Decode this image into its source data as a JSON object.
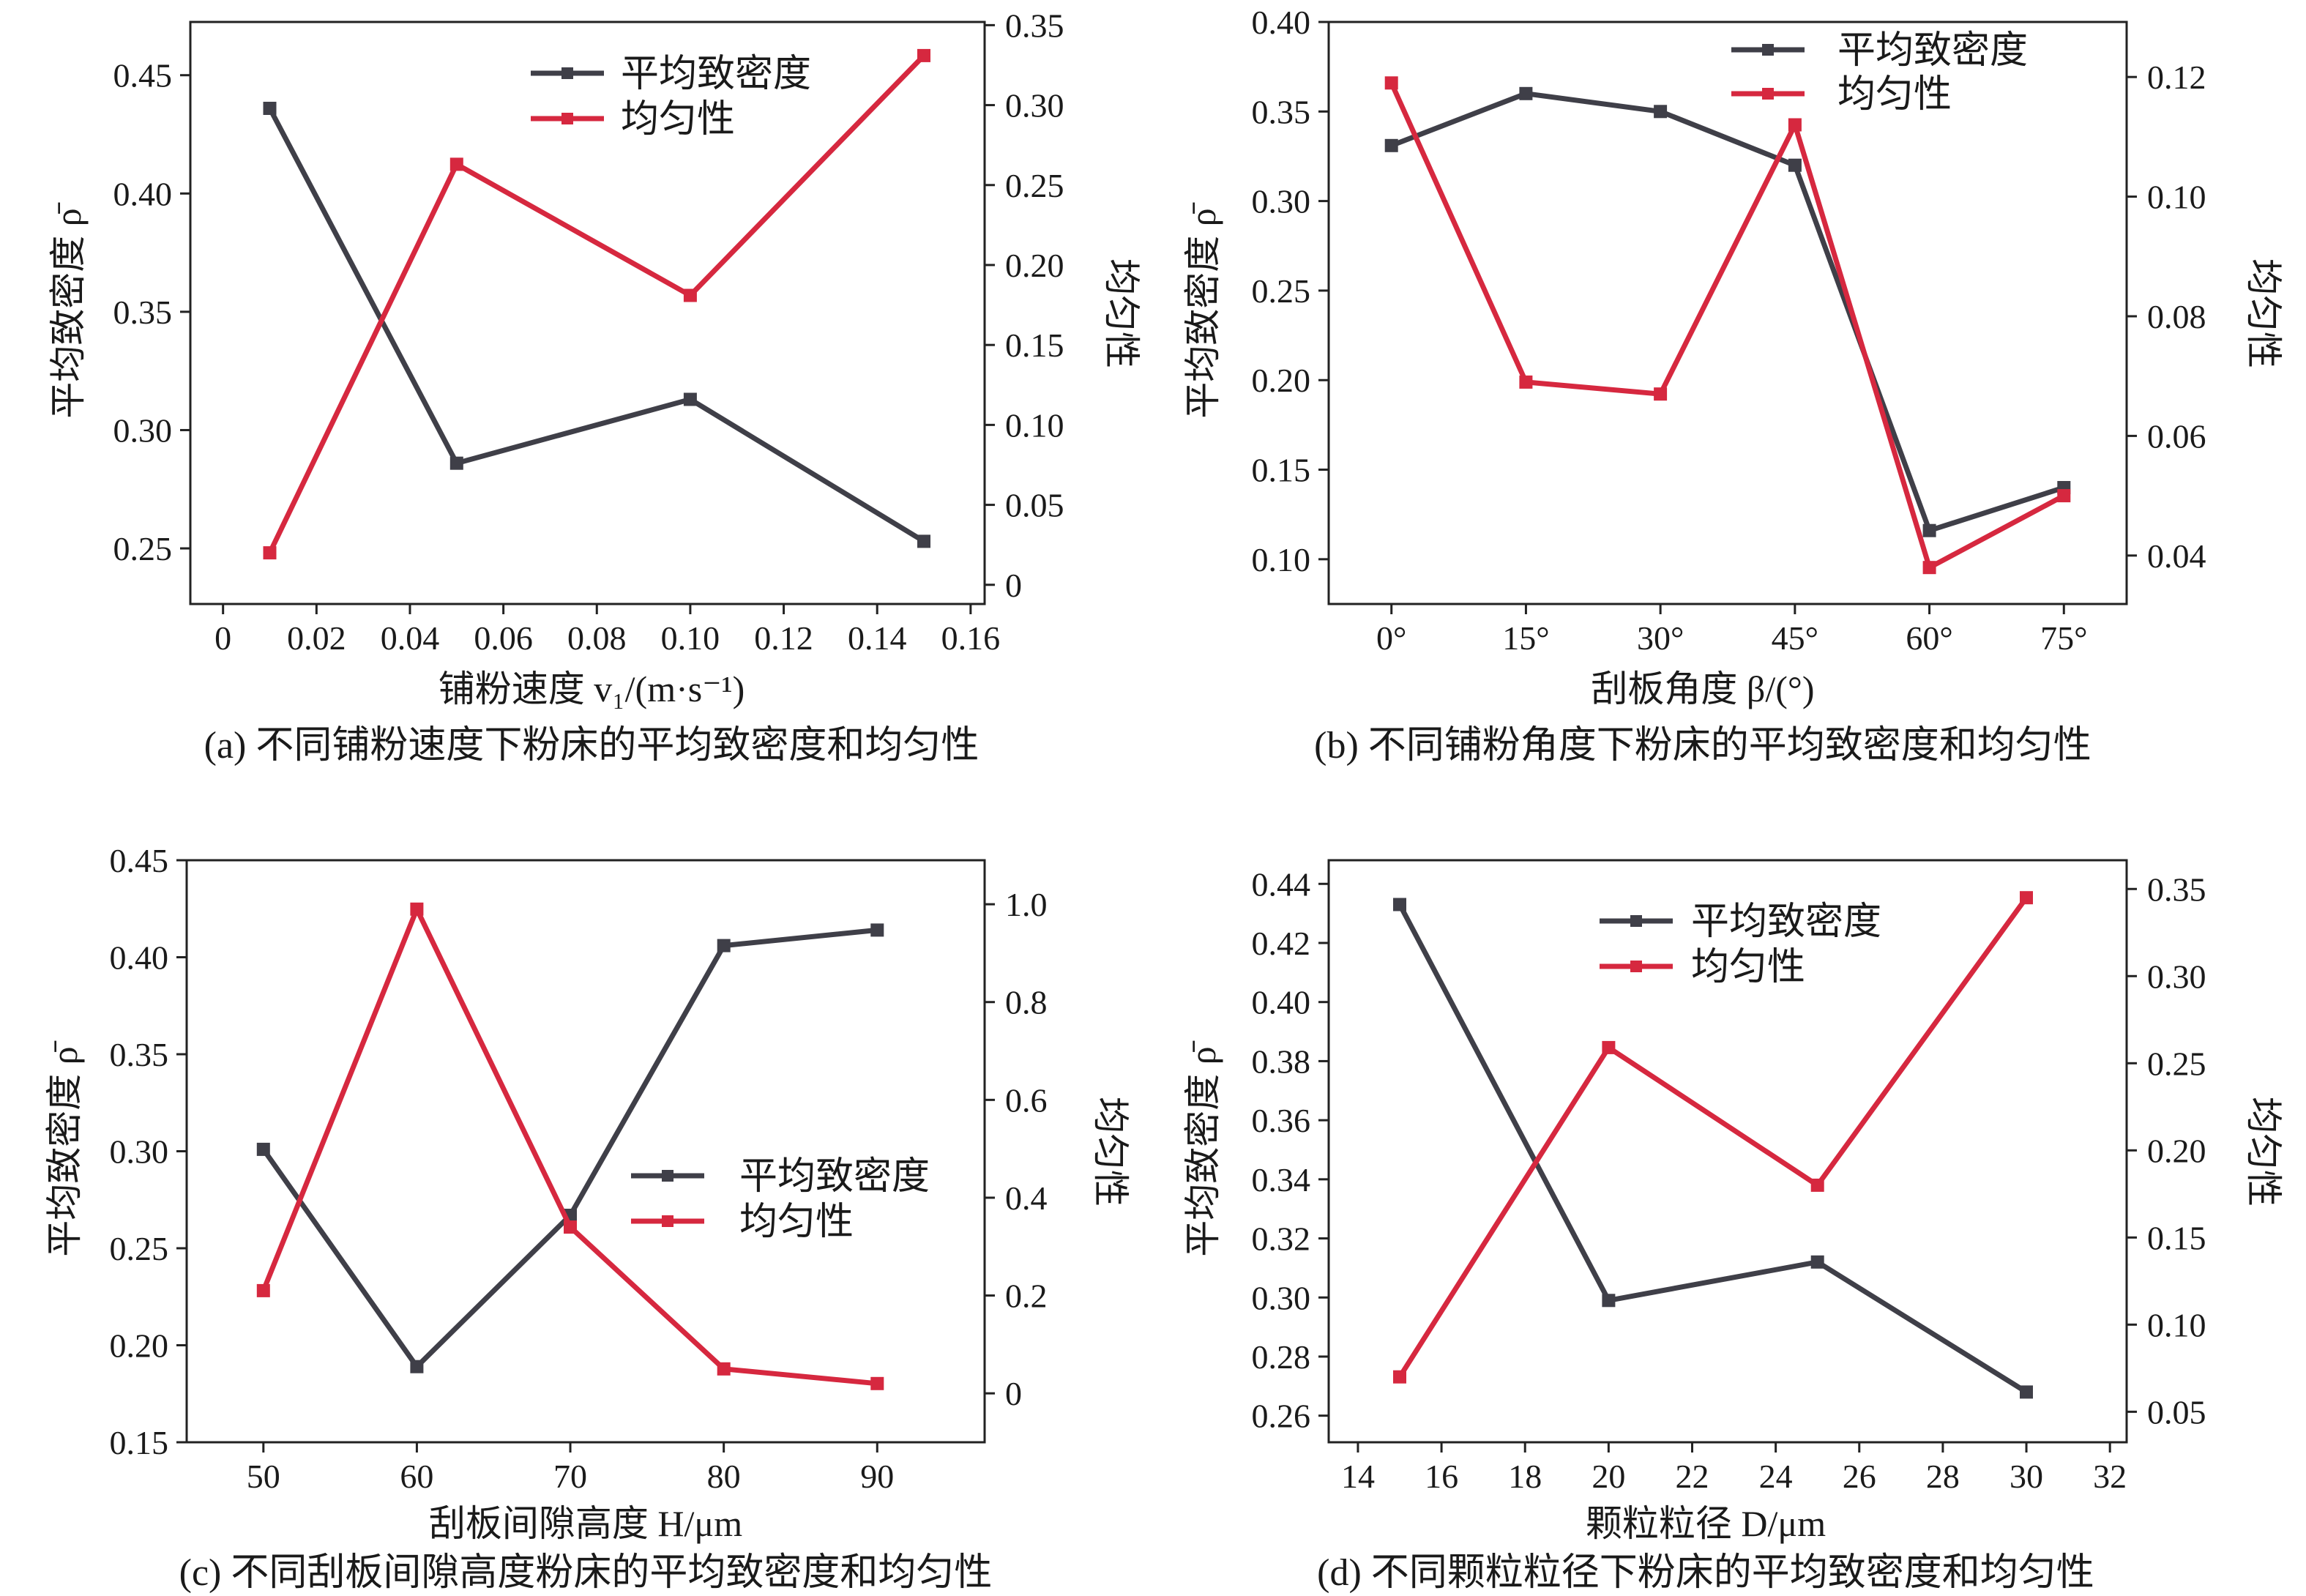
{
  "colors": {
    "density": "#3f3f48",
    "uniformity": "#d6283f",
    "axis": "#222222"
  },
  "chart_data": [
    {
      "type": "line",
      "caption": "(a) 不同铺粉速度下粉床的平均致密度和均匀性",
      "xlabel": "铺粉速度 v₁/(m·s⁻¹)",
      "ylabel": "平均致密度 ρ̄",
      "y2label": "均匀性",
      "legend": [
        "平均致密度",
        "均匀性"
      ],
      "x_kind": "numeric",
      "x_ticks": [
        0,
        0.02,
        0.04,
        0.06,
        0.08,
        0.1,
        0.12,
        0.14,
        0.16
      ],
      "x_tick_labels": [
        "0",
        "0.02",
        "0.04",
        "0.06",
        "0.08",
        "0.10",
        "0.12",
        "0.14",
        "0.16"
      ],
      "xlim": [
        -0.007,
        0.163
      ],
      "y_ticks": [
        0.25,
        0.3,
        0.35,
        0.4,
        0.45
      ],
      "y_tick_labels": [
        "0.25",
        "0.30",
        "0.35",
        "0.40",
        "0.45"
      ],
      "ylim": [
        0.2265,
        0.4725
      ],
      "y2_ticks": [
        0,
        0.05,
        0.1,
        0.15,
        0.2,
        0.25,
        0.3,
        0.35
      ],
      "y2_tick_labels": [
        "0",
        "0.05",
        "0.10",
        "0.15",
        "0.20",
        "0.25",
        "0.30",
        "0.35"
      ],
      "y2lim": [
        -0.012,
        0.352
      ],
      "series": [
        {
          "name": "平均致密度",
          "axis": "left",
          "x": [
            0.01,
            0.05,
            0.1,
            0.15
          ],
          "values": [
            0.436,
            0.286,
            0.313,
            0.253
          ]
        },
        {
          "name": "均匀性",
          "axis": "right",
          "x": [
            0.01,
            0.05,
            0.1,
            0.15
          ],
          "values": [
            0.02,
            0.263,
            0.181,
            0.331
          ]
        }
      ]
    },
    {
      "type": "line",
      "caption": "(b) 不同铺粉角度下粉床的平均致密度和均匀性",
      "xlabel": "刮板角度 β/(°)",
      "ylabel": "平均致密度 ρ̄",
      "y2label": "均匀性",
      "legend": [
        "平均致密度",
        "均匀性"
      ],
      "x_kind": "numeric",
      "x_ticks": [
        0,
        15,
        30,
        45,
        60,
        75
      ],
      "x_tick_labels": [
        "0°",
        "15°",
        "30°",
        "45°",
        "60°",
        "75°"
      ],
      "xlim": [
        -7,
        82
      ],
      "y_ticks": [
        0.1,
        0.15,
        0.2,
        0.25,
        0.3,
        0.35,
        0.4
      ],
      "y_tick_labels": [
        "0.10",
        "0.15",
        "0.20",
        "0.25",
        "0.30",
        "0.35",
        "0.40"
      ],
      "ylim": [
        0.075,
        0.4
      ],
      "y2_ticks": [
        0.04,
        0.06,
        0.08,
        0.1,
        0.12
      ],
      "y2_tick_labels": [
        "0.04",
        "0.06",
        "0.08",
        "0.10",
        "0.12"
      ],
      "y2lim": [
        0.0319,
        0.1292
      ],
      "series": [
        {
          "name": "平均致密度",
          "axis": "left",
          "x": [
            0,
            15,
            30,
            45,
            60,
            75
          ],
          "values": [
            0.331,
            0.36,
            0.35,
            0.32,
            0.116,
            0.14
          ]
        },
        {
          "name": "均匀性",
          "axis": "right",
          "x": [
            0,
            15,
            30,
            45,
            60,
            75
          ],
          "values": [
            0.119,
            0.069,
            0.067,
            0.112,
            0.038,
            0.05
          ]
        }
      ]
    },
    {
      "type": "line",
      "caption": "(c) 不同刮板间隙高度粉床的平均致密度和均匀性",
      "xlabel": "刮板间隙高度 H/μm",
      "ylabel": "平均致密度 ρ̄",
      "y2label": "均匀性",
      "legend": [
        "平均致密度",
        "均匀性"
      ],
      "x_kind": "numeric",
      "x_ticks": [
        50,
        60,
        70,
        80,
        90
      ],
      "x_tick_labels": [
        "50",
        "60",
        "70",
        "80",
        "90"
      ],
      "xlim": [
        45,
        97
      ],
      "y_ticks": [
        0.15,
        0.2,
        0.25,
        0.3,
        0.35,
        0.4,
        0.45
      ],
      "y_tick_labels": [
        "0.15",
        "0.20",
        "0.25",
        "0.30",
        "0.35",
        "0.40",
        "0.45"
      ],
      "ylim": [
        0.15,
        0.45
      ],
      "y2_ticks": [
        0,
        0.2,
        0.4,
        0.6,
        0.8,
        1.0
      ],
      "y2_tick_labels": [
        "0",
        "0.2",
        "0.4",
        "0.6",
        "0.8",
        "1.0"
      ],
      "y2lim": [
        -0.1,
        1.09
      ],
      "series": [
        {
          "name": "平均致密度",
          "axis": "left",
          "x": [
            50,
            60,
            70,
            80,
            90
          ],
          "values": [
            0.301,
            0.189,
            0.267,
            0.406,
            0.414
          ]
        },
        {
          "name": "均匀性",
          "axis": "right",
          "x": [
            50,
            60,
            70,
            80,
            90
          ],
          "values": [
            0.21,
            0.99,
            0.34,
            0.05,
            0.02
          ]
        }
      ]
    },
    {
      "type": "line",
      "caption": "(d) 不同颗粒粒径下粉床的平均致密度和均匀性",
      "xlabel": "颗粒粒径 D/μm",
      "ylabel": "平均致密度 ρ̄",
      "y2label": "均匀性",
      "legend": [
        "平均致密度",
        "均匀性"
      ],
      "x_kind": "numeric",
      "x_ticks": [
        14,
        16,
        18,
        20,
        22,
        24,
        26,
        28,
        30,
        32
      ],
      "x_tick_labels": [
        "14",
        "16",
        "18",
        "20",
        "22",
        "24",
        "26",
        "28",
        "30",
        "32"
      ],
      "xlim": [
        13.3,
        32.4
      ],
      "y_ticks": [
        0.26,
        0.28,
        0.3,
        0.32,
        0.34,
        0.36,
        0.38,
        0.4,
        0.42,
        0.44
      ],
      "y_tick_labels": [
        "0.26",
        "0.28",
        "0.30",
        "0.32",
        "0.34",
        "0.36",
        "0.38",
        "0.40",
        "0.42",
        "0.44"
      ],
      "ylim": [
        0.251,
        0.448
      ],
      "y2_ticks": [
        0.05,
        0.1,
        0.15,
        0.2,
        0.25,
        0.3,
        0.35
      ],
      "y2_tick_labels": [
        "0.05",
        "0.10",
        "0.15",
        "0.20",
        "0.25",
        "0.30",
        "0.35"
      ],
      "y2lim": [
        0.0325,
        0.3665
      ],
      "series": [
        {
          "name": "平均致密度",
          "axis": "left",
          "x": [
            15,
            20,
            25,
            30
          ],
          "values": [
            0.433,
            0.299,
            0.312,
            0.268
          ]
        },
        {
          "name": "均匀性",
          "axis": "right",
          "x": [
            15,
            20,
            25,
            30
          ],
          "values": [
            0.07,
            0.259,
            0.18,
            0.345
          ]
        }
      ]
    }
  ]
}
